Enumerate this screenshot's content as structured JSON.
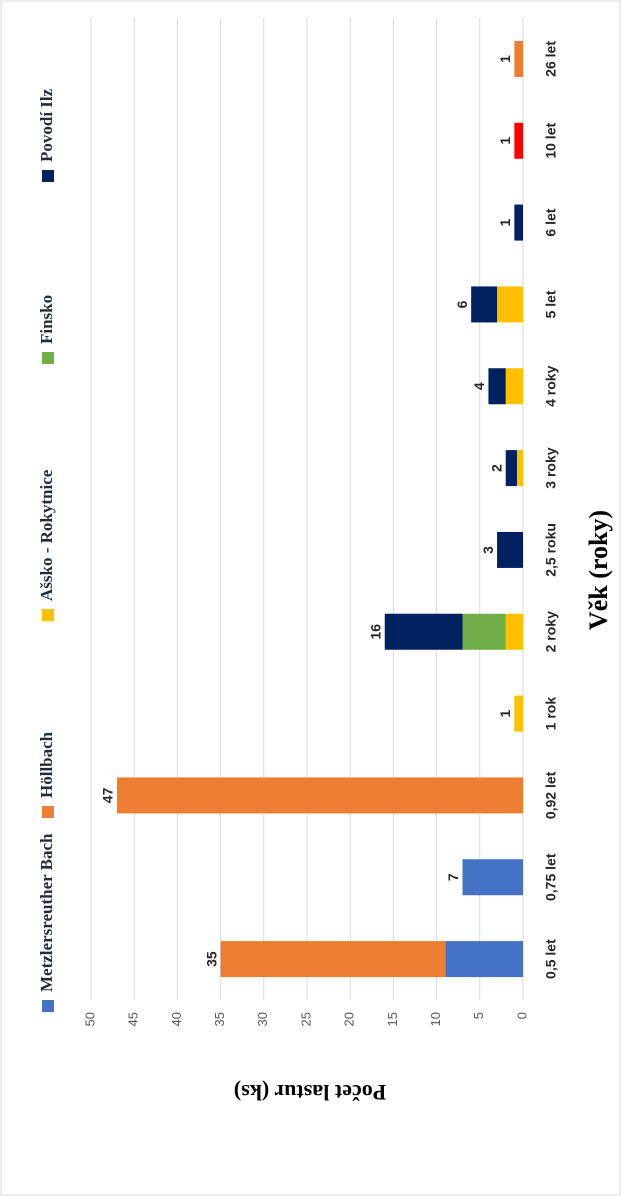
{
  "chart_data": {
    "type": "bar",
    "stacked": true,
    "orientation": "rotated-90",
    "title": "",
    "xlabel": "Věk (roky)",
    "ylabel": "Počet lastur (ks)",
    "ylim": [
      0,
      50
    ],
    "y_ticks": [
      "0",
      "5",
      "10",
      "15",
      "20",
      "25",
      "30",
      "35",
      "40",
      "45",
      "50"
    ],
    "grid": true,
    "legend_position": "top",
    "categories": [
      "0,5 let",
      "0,75 let",
      "0,92 let",
      "1 rok",
      "2 roky",
      "2,5 roku",
      "3 roky",
      "4 roky",
      "5 let",
      "6 let",
      "10 let",
      "26 let"
    ],
    "series": [
      {
        "name": "Metzlersreuther Bach",
        "color": "#4472c4",
        "values": [
          9,
          7,
          0,
          0,
          0,
          0,
          0,
          0,
          0,
          0,
          0,
          0
        ]
      },
      {
        "name": "Höllbach",
        "color": "#ed7d31",
        "values": [
          26,
          0,
          47,
          0,
          0,
          0,
          0,
          0,
          0,
          0,
          0,
          1
        ]
      },
      {
        "name": "Ašsko - Rokytnice",
        "color": "#ffc000",
        "values": [
          0,
          0,
          0,
          1,
          2,
          0,
          0.7,
          2,
          3,
          0,
          0,
          0
        ]
      },
      {
        "name": "Finsko",
        "color": "#70ad47",
        "values": [
          0,
          0,
          0,
          0,
          5,
          0,
          0,
          0,
          0,
          0,
          0,
          0
        ]
      },
      {
        "name": "Povodí Ilz",
        "color": "#002060",
        "values": [
          0,
          0,
          0,
          0,
          9,
          3,
          1.3,
          2,
          3,
          1,
          0,
          0
        ]
      },
      {
        "name": "",
        "color": "#ff0000",
        "values": [
          0,
          0,
          0,
          0,
          0,
          0,
          0,
          0,
          0,
          0,
          1,
          0
        ]
      }
    ],
    "totals": [
      "35",
      "7",
      "47",
      "1",
      "16",
      "3",
      "2",
      "4",
      "6",
      "1",
      "1",
      "1"
    ]
  }
}
